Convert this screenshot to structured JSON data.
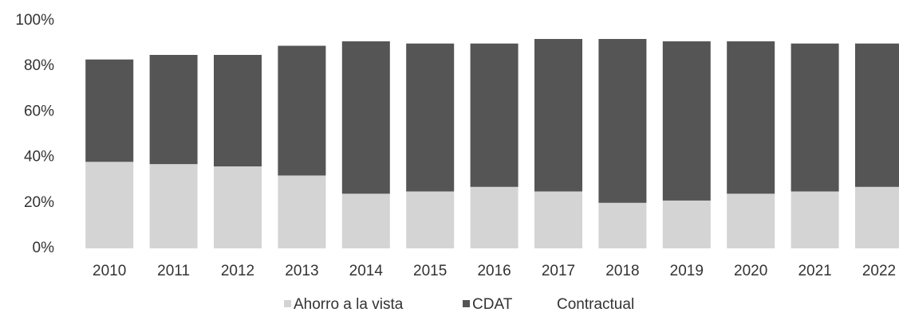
{
  "chart_data": {
    "type": "stacked_bar",
    "categories": [
      "2010",
      "2011",
      "2012",
      "2013",
      "2014",
      "2015",
      "2016",
      "2017",
      "2018",
      "2019",
      "2020",
      "2021",
      "2022"
    ],
    "series": [
      {
        "name": "Ahorro a la vista",
        "color": "#d4d4d4",
        "values": [
          38,
          37,
          36,
          32,
          24,
          25,
          27,
          25,
          20,
          21,
          24,
          25,
          27
        ]
      },
      {
        "name": "CDAT",
        "color": "#555555",
        "values": [
          45,
          48,
          49,
          57,
          67,
          65,
          63,
          67,
          72,
          70,
          67,
          65,
          63
        ]
      },
      {
        "name": "Contractual",
        "color": "#ffffff",
        "values": [
          17,
          15,
          15,
          11,
          9,
          10,
          10,
          8,
          8,
          9,
          9,
          10,
          10
        ]
      }
    ],
    "ylim": [
      0,
      100
    ],
    "yticks": [
      {
        "value": 0,
        "label": "0%"
      },
      {
        "value": 20,
        "label": "20%"
      },
      {
        "value": 40,
        "label": "40%"
      },
      {
        "value": 60,
        "label": "60%"
      },
      {
        "value": 80,
        "label": "80%"
      },
      {
        "value": 100,
        "label": "100%"
      }
    ],
    "grid": false,
    "legend": "bottom"
  }
}
